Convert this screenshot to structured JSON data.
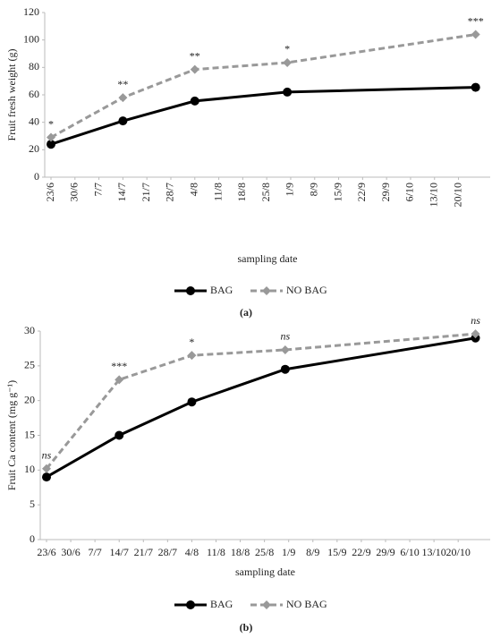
{
  "chart_data": [
    {
      "type": "line",
      "caption": "(a)",
      "x_label": "sampling date",
      "y_label": "Fruit fresh weight (g)",
      "x": [
        0,
        21,
        42,
        69,
        124
      ],
      "xlim": [
        0,
        128
      ],
      "xticks": [
        {
          "value": 0,
          "label": "23/6"
        },
        {
          "value": 7,
          "label": "30/6"
        },
        {
          "value": 14,
          "label": "7/7"
        },
        {
          "value": 21,
          "label": "14/7"
        },
        {
          "value": 28,
          "label": "21/7"
        },
        {
          "value": 35,
          "label": "28/7"
        },
        {
          "value": 42,
          "label": "4/8"
        },
        {
          "value": 49,
          "label": "11/8"
        },
        {
          "value": 56,
          "label": "18/8"
        },
        {
          "value": 63,
          "label": "25/8"
        },
        {
          "value": 70,
          "label": "1/9"
        },
        {
          "value": 77,
          "label": "8/9"
        },
        {
          "value": 84,
          "label": "15/9"
        },
        {
          "value": 91,
          "label": "22/9"
        },
        {
          "value": 98,
          "label": "29/9"
        },
        {
          "value": 105,
          "label": "6/10"
        },
        {
          "value": 112,
          "label": "13/10"
        },
        {
          "value": 119,
          "label": "20/10"
        }
      ],
      "ylim": [
        0,
        120
      ],
      "yticks": [
        0,
        20,
        40,
        60,
        80,
        100,
        120
      ],
      "series": [
        {
          "name": "BAG",
          "color": "#000000",
          "marker": "circle",
          "linestyle": "solid",
          "values": [
            24,
            41,
            55.5,
            62,
            65.5
          ]
        },
        {
          "name": "NO BAG",
          "color": "#999999",
          "marker": "diamond",
          "linestyle": "dashed",
          "values": [
            29,
            58,
            78.5,
            83.5,
            104
          ]
        }
      ],
      "annotations": [
        "*",
        "**",
        "**",
        "*",
        "***"
      ]
    },
    {
      "type": "line",
      "caption": "(b)",
      "x_label": "sampling date",
      "y_label": "Fruit Ca content (mg g⁻¹)",
      "x": [
        0,
        21,
        42,
        69,
        124
      ],
      "xlim": [
        0,
        128
      ],
      "xticks": [
        {
          "value": 0,
          "label": "23/6"
        },
        {
          "value": 7,
          "label": "30/6"
        },
        {
          "value": 14,
          "label": "7/7"
        },
        {
          "value": 21,
          "label": "14/7"
        },
        {
          "value": 28,
          "label": "21/7"
        },
        {
          "value": 35,
          "label": "28/7"
        },
        {
          "value": 42,
          "label": "4/8"
        },
        {
          "value": 49,
          "label": "11/8"
        },
        {
          "value": 56,
          "label": "18/8"
        },
        {
          "value": 63,
          "label": "25/8"
        },
        {
          "value": 70,
          "label": "1/9"
        },
        {
          "value": 77,
          "label": "8/9"
        },
        {
          "value": 84,
          "label": "15/9"
        },
        {
          "value": 91,
          "label": "22/9"
        },
        {
          "value": 98,
          "label": "29/9"
        },
        {
          "value": 105,
          "label": "6/10"
        },
        {
          "value": 112,
          "label": "13/10"
        },
        {
          "value": 119,
          "label": "20/10"
        }
      ],
      "ylim": [
        0,
        30
      ],
      "yticks": [
        0,
        5,
        10,
        15,
        20,
        25,
        30
      ],
      "series": [
        {
          "name": "BAG",
          "color": "#000000",
          "marker": "circle",
          "linestyle": "solid",
          "values": [
            9,
            15,
            19.8,
            24.5,
            29
          ]
        },
        {
          "name": "NO BAG",
          "color": "#999999",
          "marker": "diamond",
          "linestyle": "dashed",
          "values": [
            10.2,
            23,
            26.5,
            27.3,
            29.6
          ]
        }
      ],
      "annotations": [
        "ns",
        "***",
        "*",
        "ns",
        "ns"
      ]
    }
  ]
}
